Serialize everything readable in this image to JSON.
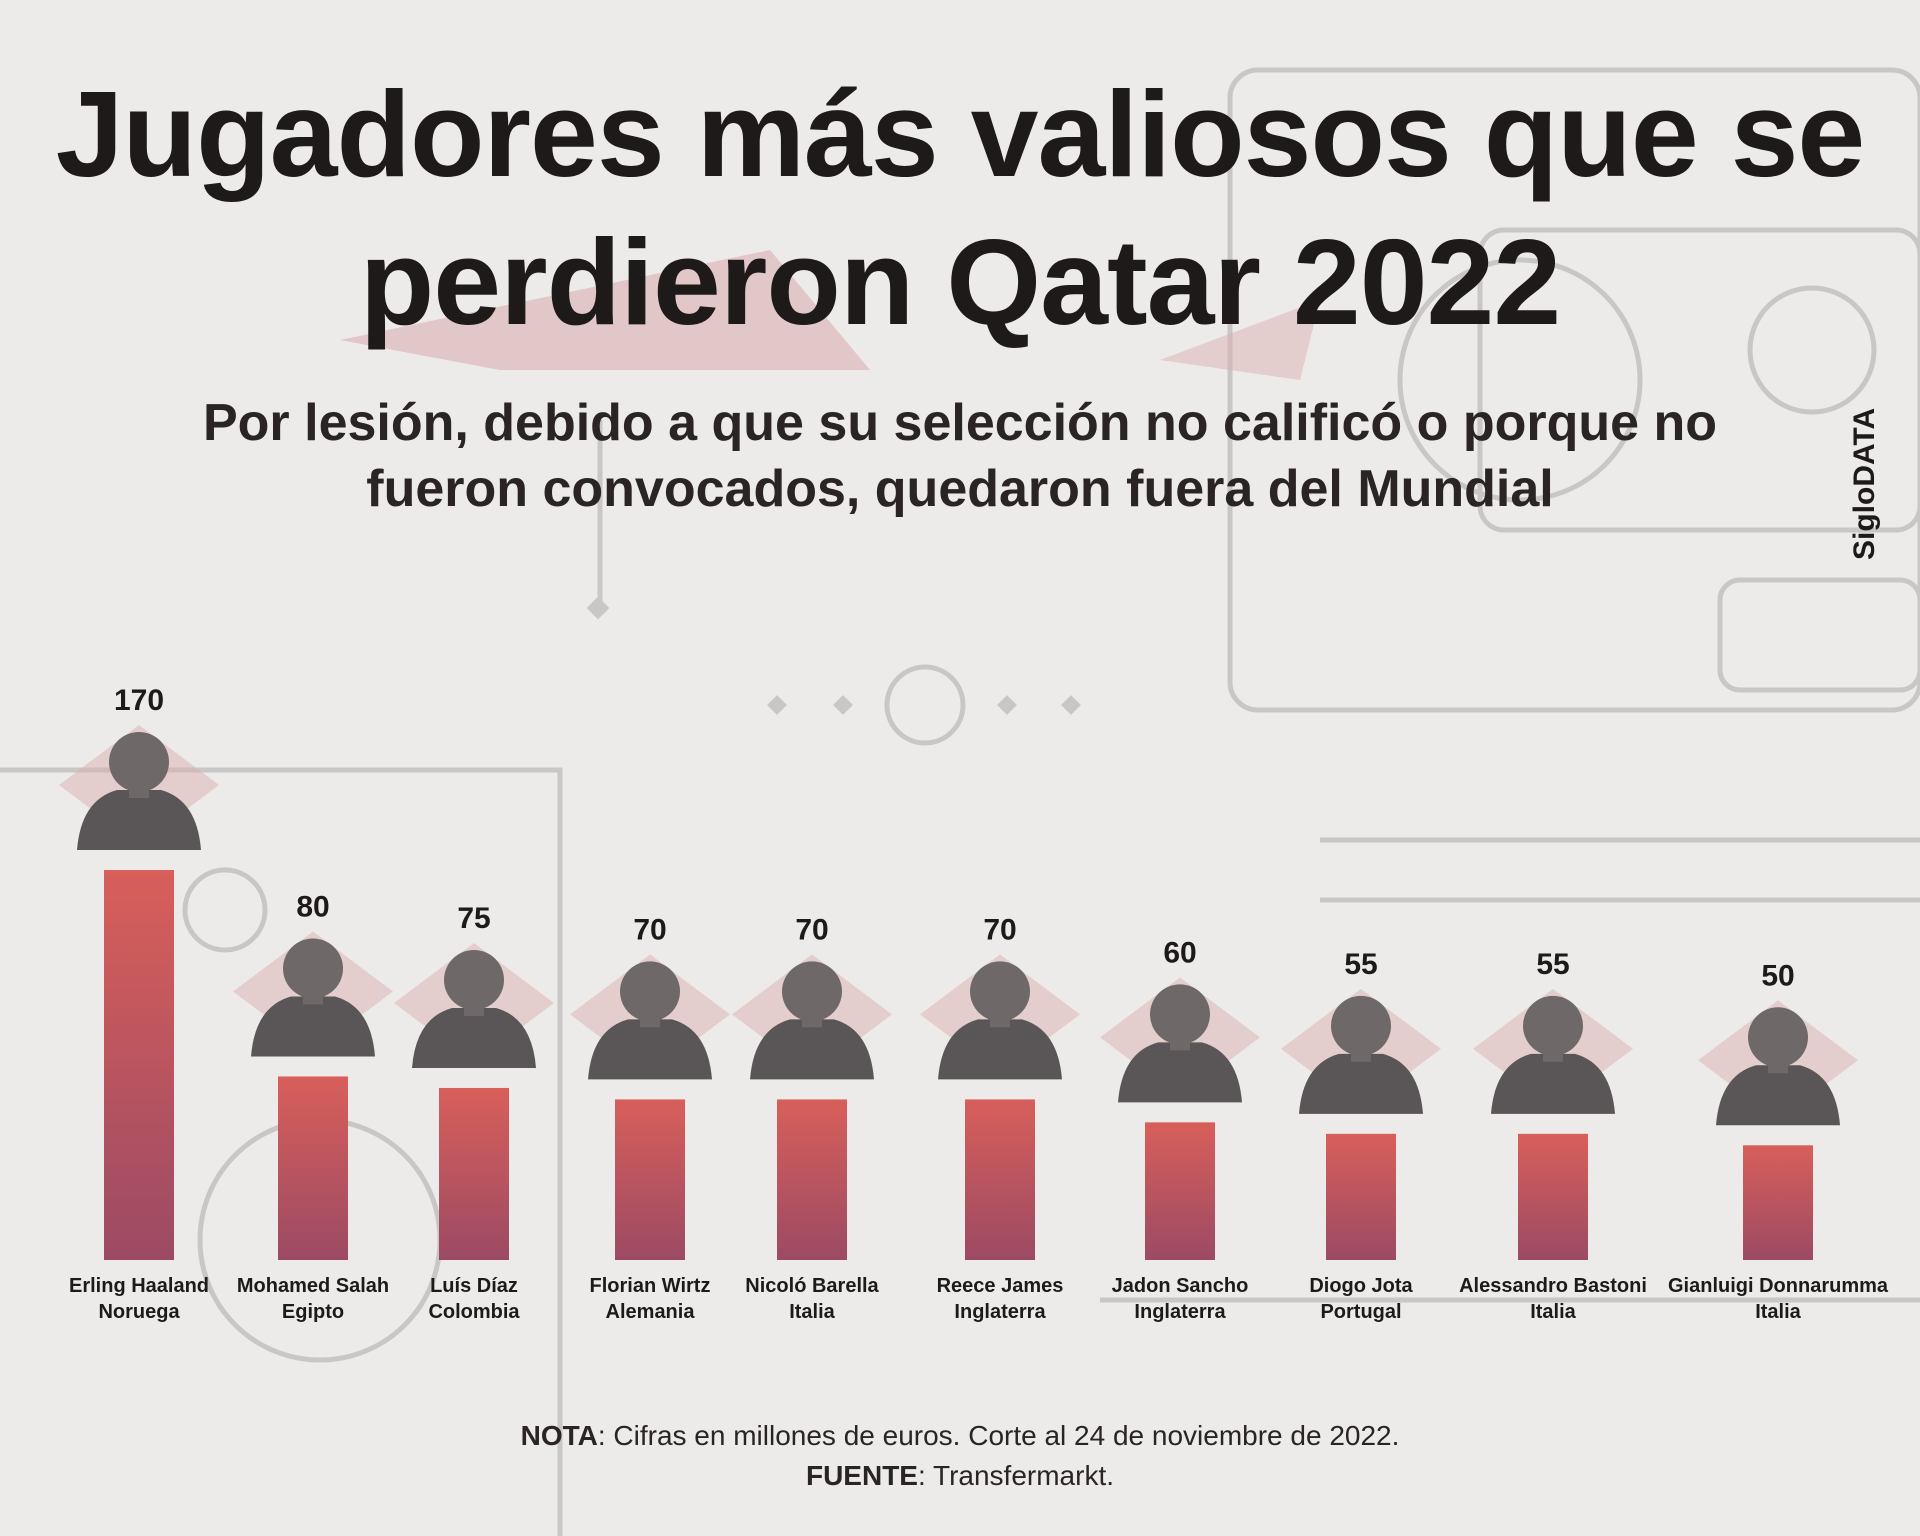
{
  "title_line1": "Jugadores más valiosos que se",
  "title_line2": "perdieron Qatar 2022",
  "subtitle_line1": "Por lesión, debido a que su selección no calificó o porque no",
  "subtitle_line2": "fueron convocados, quedaron fuera del Mundial",
  "brand": "SigloDATA",
  "note": {
    "label": "NOTA",
    "text": ": Cifras en millones de euros. Corte al 24 de noviembre de 2022."
  },
  "source": {
    "label": "FUENTE",
    "text": ": Transfermarkt."
  },
  "colors": {
    "bar_top": "#d85f5a",
    "bar_bottom": "#9c4a64",
    "accent": "#d9aaaa",
    "text": "#1f1a1a"
  },
  "chart_data": {
    "type": "bar",
    "title": "Jugadores más valiosos que se perdieron Qatar 2022",
    "unit": "millones de euros",
    "ylim": [
      0,
      170
    ],
    "categories": [
      "Erling Haaland",
      "Mohamed Salah",
      "Luís Díaz",
      "Florian Wirtz",
      "Nicoló Barella",
      "Reece James",
      "Jadon Sancho",
      "Diogo Jota",
      "Alessandro Bastoni",
      "Gianluigi Donnarumma"
    ],
    "countries": [
      "Noruega",
      "Egipto",
      "Colombia",
      "Alemania",
      "Italia",
      "Inglaterra",
      "Inglaterra",
      "Portugal",
      "Italia",
      "Italia"
    ],
    "values": [
      170,
      80,
      75,
      70,
      70,
      70,
      60,
      55,
      55,
      50
    ]
  }
}
